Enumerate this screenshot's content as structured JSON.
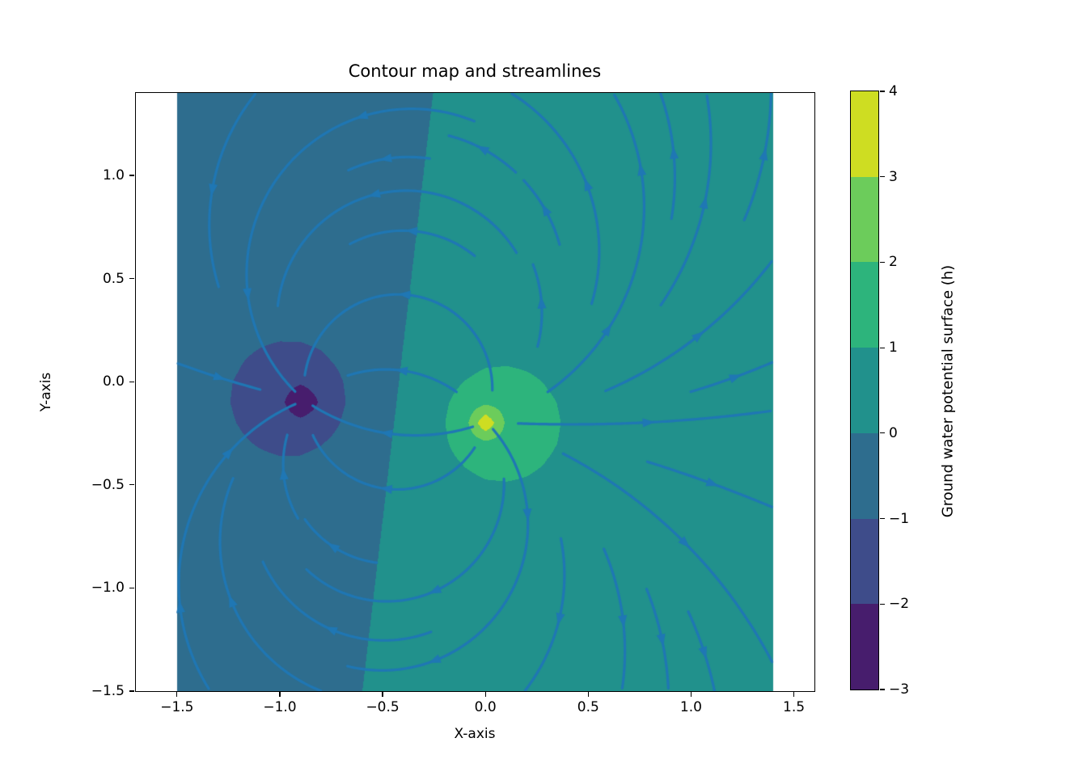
{
  "chart_data": {
    "type": "contour-streamplot",
    "title": "Contour map and streamlines",
    "xlabel": "X-axis",
    "ylabel": "Y-axis",
    "xlim": [
      -1.7,
      1.6
    ],
    "ylim": [
      -1.5,
      1.4
    ],
    "xtick_values": [
      -1.5,
      -1.0,
      -0.5,
      0.0,
      0.5,
      1.0,
      1.5
    ],
    "xtick_labels": [
      "−1.5",
      "−1.0",
      "−0.5",
      "0.0",
      "0.5",
      "1.0",
      "1.5"
    ],
    "ytick_values": [
      -1.5,
      -1.0,
      -0.5,
      0.0,
      0.5,
      1.0
    ],
    "ytick_labels": [
      "−1.5",
      "−1.0",
      "−0.5",
      "0.0",
      "0.5",
      "1.0"
    ],
    "grid": {
      "x0": -1.5,
      "x1": 1.4,
      "y0": -1.5,
      "y1": 1.4,
      "step": 0.1
    },
    "field": {
      "model": "h = coef * (ln r_sink - ln r_source); flow velocity v = -grad(h)",
      "coef": 0.8,
      "source_well": {
        "x": 0.005,
        "y": -0.195,
        "sign": "+1 (injection, h -> +inf)"
      },
      "sink_well": {
        "x": -0.88,
        "y": -0.09,
        "sign": "-1 (extraction, h -> -inf)"
      }
    },
    "levels": [
      -3,
      -2,
      -1,
      0,
      1,
      2,
      3,
      4
    ],
    "band_colors": [
      "#471d6d",
      "#3e4c8a",
      "#2e6d8e",
      "#21918c",
      "#2db47c",
      "#6ccc5b",
      "#cedd22"
    ],
    "colorbar": {
      "label": "Ground water potential surface (h)",
      "tick_values": [
        4,
        3,
        2,
        1,
        0,
        -1,
        -2,
        -3
      ],
      "tick_labels": [
        "4",
        "3",
        "2",
        "1",
        "0",
        "−1",
        "−2",
        "−3"
      ]
    },
    "streamlines": {
      "color": "#1f77b4",
      "line_width": 3.2,
      "arrow_length": 15,
      "arrow_half_width": 5.5,
      "density_cells": 14,
      "min_length": 0.35,
      "arrow_spacing_px": 270
    },
    "text_color": "#000000",
    "background": "#ffffff"
  }
}
